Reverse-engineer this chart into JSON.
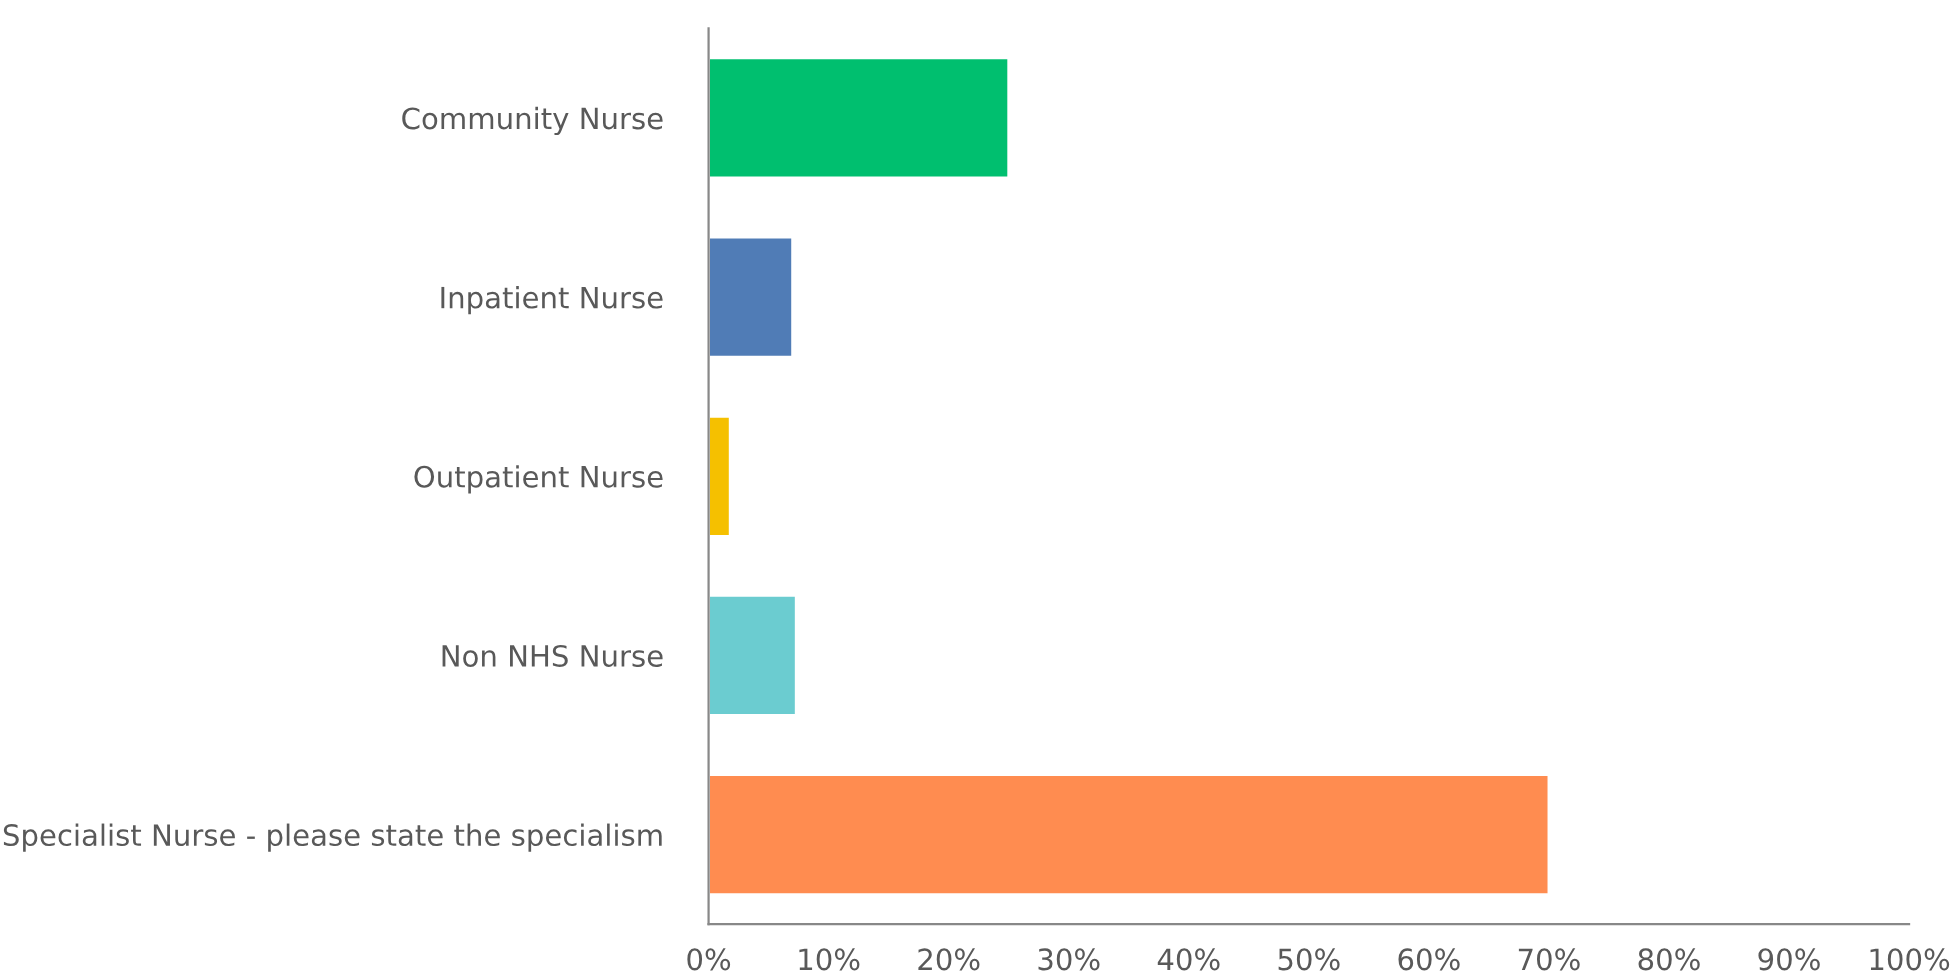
{
  "chart_data": {
    "type": "bar",
    "orientation": "horizontal",
    "categories": [
      "Community Nurse",
      "Inpatient Nurse",
      "Outpatient Nurse",
      "Non NHS Nurse",
      "Specialist Nurse - please state the specialism"
    ],
    "values": [
      25,
      7,
      1.8,
      7.3,
      70
    ],
    "colors": [
      "#00bf6f",
      "#507cb6",
      "#f5c000",
      "#6bccd0",
      "#ff8c50"
    ],
    "xlim": [
      0,
      100
    ],
    "xticks": [
      {
        "value": 0,
        "label": "0%"
      },
      {
        "value": 10,
        "label": "10%"
      },
      {
        "value": 20,
        "label": "20%"
      },
      {
        "value": 30,
        "label": "30%"
      },
      {
        "value": 40,
        "label": "40%"
      },
      {
        "value": 50,
        "label": "50%"
      },
      {
        "value": 60,
        "label": "60%"
      },
      {
        "value": 70,
        "label": "70%"
      },
      {
        "value": 80,
        "label": "80%"
      },
      {
        "value": 90,
        "label": "90%"
      },
      {
        "value": 100,
        "label": "100%"
      }
    ],
    "grid": false,
    "legend": false
  }
}
